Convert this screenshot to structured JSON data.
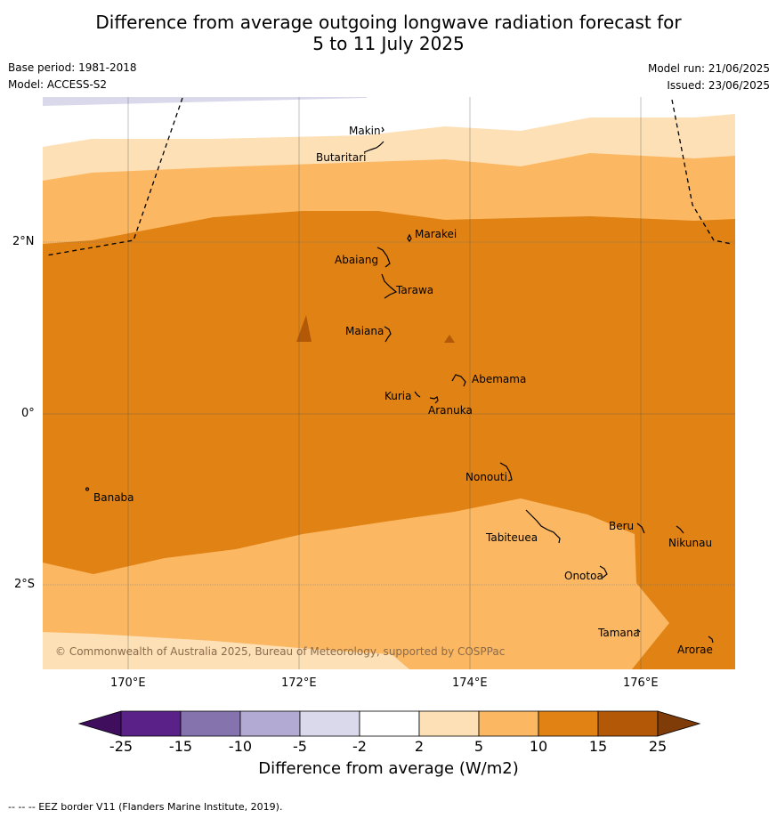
{
  "title_line1": "Difference from average outgoing longwave radiation forecast for",
  "title_line2": "5 to 11 July 2025",
  "base_period": "Base period: 1981-2018",
  "model": "Model: ACCESS-S2",
  "model_run": "Model run: 21/06/2025",
  "issued": "Issued: 23/06/2025",
  "copyright": "© Commonwealth of Australia 2025, Bureau of Meteorology, supported by COSPPac",
  "lon_ticks": [
    "170°E",
    "172°E",
    "174°E",
    "176°E"
  ],
  "lat_ticks": [
    "2°N",
    "0°",
    "2°S"
  ],
  "places": [
    "Makin",
    "Butaritari",
    "Marakei",
    "Abaiang",
    "Tarawa",
    "Maiana",
    "Abemama",
    "Kuria",
    "Aranuka",
    "Nonouti",
    "Banaba",
    "Beru",
    "Nikunau",
    "Tabiteuea",
    "Onotoa",
    "Tamana",
    "Arorae"
  ],
  "colorbar": {
    "title": "Difference from average (W/m2)",
    "ticks": [
      "-25",
      "-15",
      "-10",
      "-5",
      "-2",
      "2",
      "5",
      "10",
      "15",
      "25"
    ],
    "colors": [
      "#3f0f5e",
      "#5a2189",
      "#8473ad",
      "#b2aad3",
      "#d9d9eb",
      "#ffffff",
      "#fee0b6",
      "#fbb761",
      "#e08214",
      "#b35806",
      "#7f3b08"
    ]
  },
  "footnote": "--  --  -- EEZ border V11 (Flanders Marine Institute, 2019)."
}
